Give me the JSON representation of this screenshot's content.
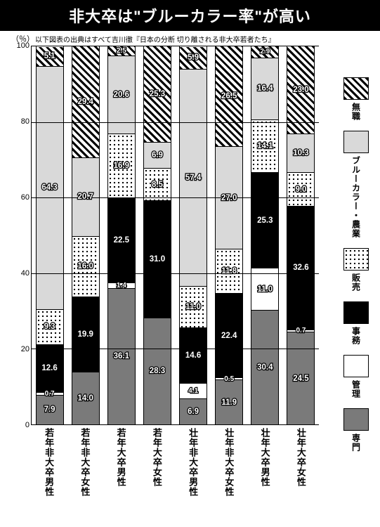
{
  "title": "非大卒は\"ブルーカラー率\"が高い",
  "subtitle": "以下図表の出典はすべて吉川徹『日本の分断 切り離される非大卒若者たち』",
  "y_axis": {
    "unit": "（％）",
    "min": 0,
    "max": 100,
    "step": 20,
    "ticks": [
      0,
      20,
      40,
      60,
      80,
      100
    ]
  },
  "legend": [
    {
      "key": "mushoku",
      "label": "無職",
      "fill_class": "fill-mushoku"
    },
    {
      "key": "blue",
      "label": "ブルーカラー・農業",
      "fill_class": "fill-blue"
    },
    {
      "key": "hanbai",
      "label": "販売",
      "fill_class": "fill-hanbai"
    },
    {
      "key": "jimu",
      "label": "事務",
      "fill_class": "fill-jimu"
    },
    {
      "key": "kanri",
      "label": "管理",
      "fill_class": "fill-kanri"
    },
    {
      "key": "senmon",
      "label": "専門",
      "fill_class": "fill-senmon"
    }
  ],
  "categories": [
    {
      "label": "若年非大卒男性",
      "segments": [
        {
          "key": "mushoku",
          "value": 5.1,
          "display": "5.1"
        },
        {
          "key": "blue",
          "value": 64.3,
          "display": "64.3"
        },
        {
          "key": "hanbai",
          "value": 9.3,
          "display": "9.3"
        },
        {
          "key": "jimu",
          "value": 12.6,
          "display": "12.6"
        },
        {
          "key": "kanri",
          "value": 0.7,
          "display": "0.7"
        },
        {
          "key": "senmon",
          "value": 7.9,
          "display": "7.9"
        }
      ]
    },
    {
      "label": "若年非大卒女性",
      "segments": [
        {
          "key": "mushoku",
          "value": 29.4,
          "display": "29.4"
        },
        {
          "key": "blue",
          "value": 20.7,
          "display": "20.7"
        },
        {
          "key": "hanbai",
          "value": 16.0,
          "display": "16.0"
        },
        {
          "key": "jimu",
          "value": 19.9,
          "display": "19.9"
        },
        {
          "key": "kanri",
          "value": 0,
          "display": ""
        },
        {
          "key": "senmon",
          "value": 14.0,
          "display": "14.0"
        }
      ]
    },
    {
      "label": "若年大卒男性",
      "segments": [
        {
          "key": "mushoku",
          "value": 2.5,
          "display": "2.5"
        },
        {
          "key": "blue",
          "value": 20.6,
          "display": "20.6"
        },
        {
          "key": "hanbai",
          "value": 16.9,
          "display": "16.9"
        },
        {
          "key": "jimu",
          "value": 22.5,
          "display": "22.5"
        },
        {
          "key": "kanri",
          "value": 1.4,
          "display": "1.4"
        },
        {
          "key": "senmon",
          "value": 36.1,
          "display": "36.1"
        }
      ]
    },
    {
      "label": "若年大卒女性",
      "segments": [
        {
          "key": "mushoku",
          "value": 25.3,
          "display": "25.3"
        },
        {
          "key": "blue",
          "value": 6.9,
          "display": "6.9"
        },
        {
          "key": "hanbai",
          "value": 8.5,
          "display": "8.5"
        },
        {
          "key": "jimu",
          "value": 31.0,
          "display": "31.0"
        },
        {
          "key": "kanri",
          "value": 0,
          "display": ""
        },
        {
          "key": "senmon",
          "value": 28.3,
          "display": "28.3"
        }
      ]
    },
    {
      "label": "壮年非大卒男性",
      "segments": [
        {
          "key": "mushoku",
          "value": 5.9,
          "display": "5.9"
        },
        {
          "key": "blue",
          "value": 57.4,
          "display": "57.4"
        },
        {
          "key": "hanbai",
          "value": 11.0,
          "display": "11.0"
        },
        {
          "key": "jimu",
          "value": 14.6,
          "display": "14.6"
        },
        {
          "key": "kanri",
          "value": 4.1,
          "display": "4.1"
        },
        {
          "key": "senmon",
          "value": 6.9,
          "display": "6.9"
        }
      ]
    },
    {
      "label": "壮年非大卒女性",
      "segments": [
        {
          "key": "mushoku",
          "value": 26.5,
          "display": "26.5"
        },
        {
          "key": "blue",
          "value": 27.0,
          "display": "27.0"
        },
        {
          "key": "hanbai",
          "value": 11.8,
          "display": "11.8"
        },
        {
          "key": "jimu",
          "value": 22.4,
          "display": "22.4"
        },
        {
          "key": "kanri",
          "value": 0.5,
          "display": "0.5"
        },
        {
          "key": "senmon",
          "value": 11.9,
          "display": "11.9"
        }
      ]
    },
    {
      "label": "壮年大卒男性",
      "segments": [
        {
          "key": "mushoku",
          "value": 2.9,
          "display": "2.9"
        },
        {
          "key": "blue",
          "value": 16.4,
          "display": "16.4"
        },
        {
          "key": "hanbai",
          "value": 14.1,
          "display": "14.1"
        },
        {
          "key": "jimu",
          "value": 25.3,
          "display": "25.3"
        },
        {
          "key": "kanri",
          "value": 11.0,
          "display": "11.0"
        },
        {
          "key": "senmon",
          "value": 30.4,
          "display": "30.4"
        }
      ]
    },
    {
      "label": "壮年大卒女性",
      "segments": [
        {
          "key": "mushoku",
          "value": 23.0,
          "display": "23.0"
        },
        {
          "key": "blue",
          "value": 10.3,
          "display": "10.3"
        },
        {
          "key": "hanbai",
          "value": 9.0,
          "display": "9.0"
        },
        {
          "key": "jimu",
          "value": 32.6,
          "display": "32.6"
        },
        {
          "key": "kanri",
          "value": 0.7,
          "display": "0.7"
        },
        {
          "key": "senmon",
          "value": 24.5,
          "display": "24.5"
        }
      ]
    }
  ],
  "colors": {
    "background": "#ffffff",
    "title_bg": "#000000",
    "grid": "#000000"
  }
}
